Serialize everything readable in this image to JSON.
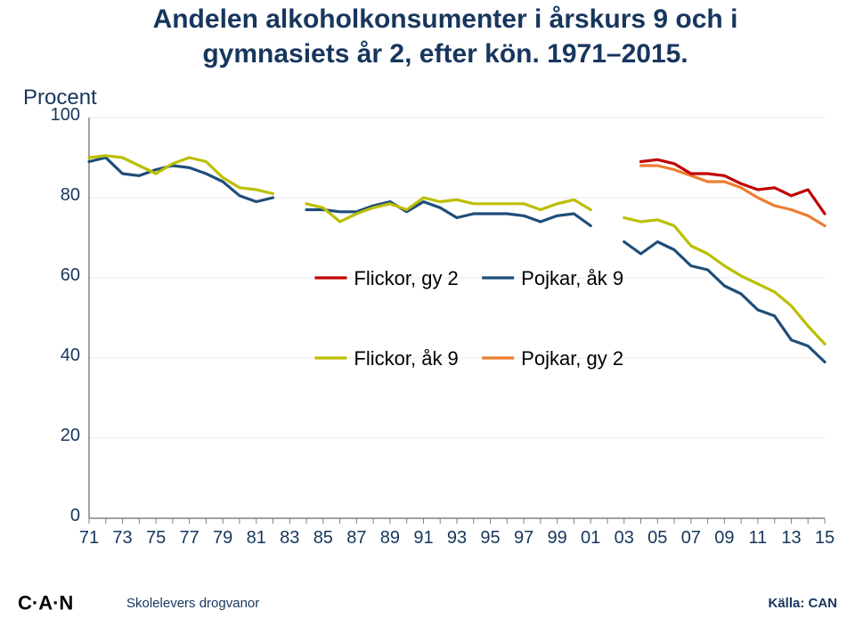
{
  "title_line1": "Andelen alkoholkonsumenter i årskurs 9 och i",
  "title_line2": "gymnasiets år 2, efter kön. 1971–2015.",
  "ylabel": "Procent",
  "source_label": "Källa: CAN",
  "footer_text": "Skolelevers drogvanor",
  "logo_letters": "C·A·N",
  "legend": [
    {
      "key": "flickor_gy2",
      "label": "Flickor, gy 2"
    },
    {
      "key": "pojkar_ak9",
      "label": "Pojkar, åk 9"
    },
    {
      "key": "flickor_ak9",
      "label": "Flickor, åk 9"
    },
    {
      "key": "pojkar_gy2",
      "label": "Pojkar, gy 2"
    }
  ],
  "chart": {
    "type": "line",
    "x_min": 1971,
    "x_max": 2015,
    "y_min": 0,
    "y_max": 100,
    "y_ticks": [
      0,
      20,
      40,
      60,
      80,
      100
    ],
    "x_ticks": [
      71,
      73,
      75,
      77,
      79,
      81,
      83,
      85,
      87,
      89,
      91,
      93,
      95,
      97,
      99,
      "01",
      "03",
      "05",
      "07",
      "09",
      11,
      13,
      15
    ],
    "background": "#ffffff",
    "plot_background": "#ffffff",
    "grid_color": "#e8e8e8",
    "axis_color": "#808080",
    "tick_color": "#808080",
    "tick_font_size": 20,
    "tick_font_color": "#17365d",
    "line_width": 3.2,
    "legend_font_size": 22,
    "legend_box": 36,
    "series": {
      "pojkar_ak9": {
        "color": "#1f4e79",
        "segments": [
          [
            [
              1971,
              89
            ],
            [
              1972,
              90
            ],
            [
              1973,
              86
            ],
            [
              1974,
              85.5
            ],
            [
              1975,
              87
            ],
            [
              1976,
              88
            ],
            [
              1977,
              87.5
            ],
            [
              1978,
              86
            ],
            [
              1979,
              84
            ],
            [
              1980,
              80.5
            ],
            [
              1981,
              79
            ],
            [
              1982,
              80
            ]
          ],
          [
            [
              1984,
              77
            ],
            [
              1985,
              77
            ],
            [
              1986,
              76.5
            ],
            [
              1987,
              76.5
            ],
            [
              1988,
              78
            ],
            [
              1989,
              79
            ],
            [
              1990,
              76.5
            ],
            [
              1991,
              79
            ],
            [
              1992,
              77.5
            ],
            [
              1993,
              75
            ],
            [
              1994,
              76
            ],
            [
              1995,
              76
            ],
            [
              1996,
              76
            ],
            [
              1997,
              75.5
            ],
            [
              1998,
              74
            ],
            [
              1999,
              75.5
            ],
            [
              2000,
              76
            ],
            [
              2001,
              73
            ]
          ],
          [
            [
              2003,
              69
            ],
            [
              2004,
              66
            ],
            [
              2005,
              69
            ],
            [
              2006,
              67
            ],
            [
              2007,
              63
            ],
            [
              2008,
              62
            ],
            [
              2009,
              58
            ],
            [
              2010,
              56
            ],
            [
              2011,
              52
            ],
            [
              2012,
              50.5
            ],
            [
              2013,
              44.5
            ],
            [
              2014,
              43
            ],
            [
              2015,
              39
            ]
          ]
        ]
      },
      "flickor_ak9": {
        "color": "#bcbe00",
        "segments": [
          [
            [
              1971,
              90
            ],
            [
              1972,
              90.5
            ],
            [
              1973,
              90
            ],
            [
              1974,
              88
            ],
            [
              1975,
              86
            ],
            [
              1976,
              88.5
            ],
            [
              1977,
              90
            ],
            [
              1978,
              89
            ],
            [
              1979,
              85
            ],
            [
              1980,
              82.5
            ],
            [
              1981,
              82
            ],
            [
              1982,
              81
            ]
          ],
          [
            [
              1984,
              78.5
            ],
            [
              1985,
              77.5
            ],
            [
              1986,
              74
            ],
            [
              1987,
              76
            ],
            [
              1988,
              77.5
            ],
            [
              1989,
              78.5
            ],
            [
              1990,
              77
            ],
            [
              1991,
              80
            ],
            [
              1992,
              79
            ],
            [
              1993,
              79.5
            ],
            [
              1994,
              78.5
            ],
            [
              1995,
              78.5
            ],
            [
              1996,
              78.5
            ],
            [
              1997,
              78.5
            ],
            [
              1998,
              77
            ],
            [
              1999,
              78.5
            ],
            [
              2000,
              79.5
            ],
            [
              2001,
              77
            ]
          ],
          [
            [
              2003,
              75
            ],
            [
              2004,
              74
            ],
            [
              2005,
              74.5
            ],
            [
              2006,
              73
            ],
            [
              2007,
              68
            ],
            [
              2008,
              66
            ],
            [
              2009,
              63
            ],
            [
              2010,
              60.5
            ],
            [
              2011,
              58.5
            ],
            [
              2012,
              56.5
            ],
            [
              2013,
              53
            ],
            [
              2014,
              48
            ],
            [
              2015,
              43.5
            ]
          ]
        ]
      },
      "pojkar_gy2": {
        "color": "#ed7d31",
        "segments": [
          [
            [
              2004,
              88
            ],
            [
              2005,
              88
            ],
            [
              2006,
              87
            ],
            [
              2007,
              85.5
            ],
            [
              2008,
              84
            ],
            [
              2009,
              84
            ],
            [
              2010,
              82.5
            ],
            [
              2011,
              80
            ],
            [
              2012,
              78
            ],
            [
              2013,
              77
            ],
            [
              2014,
              75.5
            ],
            [
              2015,
              73
            ]
          ]
        ]
      },
      "flickor_gy2": {
        "color": "#c00000",
        "segments": [
          [
            [
              2004,
              89
            ],
            [
              2005,
              89.5
            ],
            [
              2006,
              88.5
            ],
            [
              2007,
              86
            ],
            [
              2008,
              86
            ],
            [
              2009,
              85.5
            ],
            [
              2010,
              83.5
            ],
            [
              2011,
              82
            ],
            [
              2012,
              82.5
            ],
            [
              2013,
              80.5
            ],
            [
              2014,
              82
            ],
            [
              2015,
              76
            ]
          ]
        ]
      }
    }
  }
}
